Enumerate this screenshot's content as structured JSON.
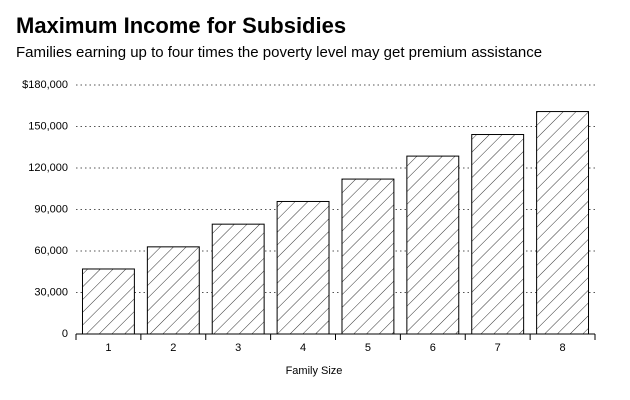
{
  "chart_data": {
    "type": "bar",
    "title": "Maximum Income for Subsidies",
    "subtitle": "Families earning up to four times the poverty level may get premium assistance",
    "x_label": "Family Size",
    "categories": [
      "1",
      "2",
      "3",
      "4",
      "5",
      "6",
      "7",
      "8"
    ],
    "values": [
      47000,
      63000,
      79400,
      95800,
      112000,
      128600,
      144200,
      160800
    ],
    "color": "#000000",
    "ylim": [
      0,
      180000
    ],
    "yticks": [
      0,
      {
        "value": 30000,
        "label": "30,000"
      },
      {
        "value": 60000,
        "label": "60,000"
      },
      {
        "value": 90000,
        "label": "90,000"
      },
      {
        "value": 120000,
        "label": "120,000"
      },
      {
        "value": 150000,
        "label": "150,000"
      },
      {
        "value": 180000,
        "label": "$180,000"
      }
    ],
    "grid": true
  }
}
